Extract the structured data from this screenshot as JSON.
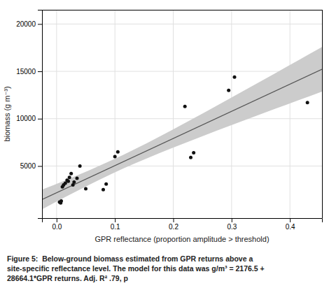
{
  "chart_data": {
    "type": "scatter",
    "xlabel": "GPR reflectance (proportion amplitude > threshold)",
    "ylabel": "biomass (g m⁻³)",
    "caption": "Figure 5:  Below-ground biomass estimated from GPR returns above a\nsite-specific reflectance level. The model for this data was g/m³ = 2176.5 +\n28664.1*GPR returns. Adj. R² .79, p",
    "xlim": [
      -0.025,
      0.455
    ],
    "ylim": [
      -500,
      21500
    ],
    "xticks": [
      {
        "value": 0.0,
        "label": "0.0"
      },
      0.1,
      0.2,
      0.3,
      0.4
    ],
    "yticks": [
      5000,
      10000,
      15000,
      20000
    ],
    "grid": true,
    "series": [
      {
        "type": "band",
        "color": "#cccccc",
        "x": [
          -0.025,
          0.015,
          0.055,
          0.095,
          0.135,
          0.175,
          0.215,
          0.255,
          0.295,
          0.335,
          0.375,
          0.415,
          0.455
        ],
        "low": [
          415.28,
          1725.63,
          2988.25,
          4179.64,
          5287.08,
          6321.83,
          7307.24,
          8262.66,
          9200.03,
          10126.21,
          11045.14,
          11959.13,
          12869.65
        ],
        "high": [
          2504.52,
          3487.29,
          4517.81,
          5619.54,
          6805.22,
          8063.61,
          9371.32,
          10709.04,
          12064.79,
          13431.73,
          14805.94,
          16185.07,
          17567.69
        ]
      },
      {
        "type": "line",
        "color": "#555555",
        "x": [
          -0.025,
          0.455
        ],
        "values": [
          1459.8975,
          15218.6655
        ]
      },
      {
        "type": "scatter",
        "color": "#111111",
        "x": [
          0.005,
          0.007,
          0.008,
          0.01,
          0.012,
          0.015,
          0.018,
          0.02,
          0.022,
          0.025,
          0.028,
          0.03,
          0.035,
          0.04,
          0.05,
          0.08,
          0.085,
          0.1,
          0.105,
          0.22,
          0.23,
          0.235,
          0.295,
          0.305,
          0.43
        ],
        "values": [
          1200,
          1100,
          1300,
          2800,
          3000,
          3200,
          3500,
          3400,
          3800,
          4200,
          3000,
          3300,
          3700,
          5000,
          2600,
          2500,
          3100,
          6000,
          6500,
          11300,
          5900,
          6400,
          13000,
          14400,
          11700
        ]
      }
    ]
  }
}
